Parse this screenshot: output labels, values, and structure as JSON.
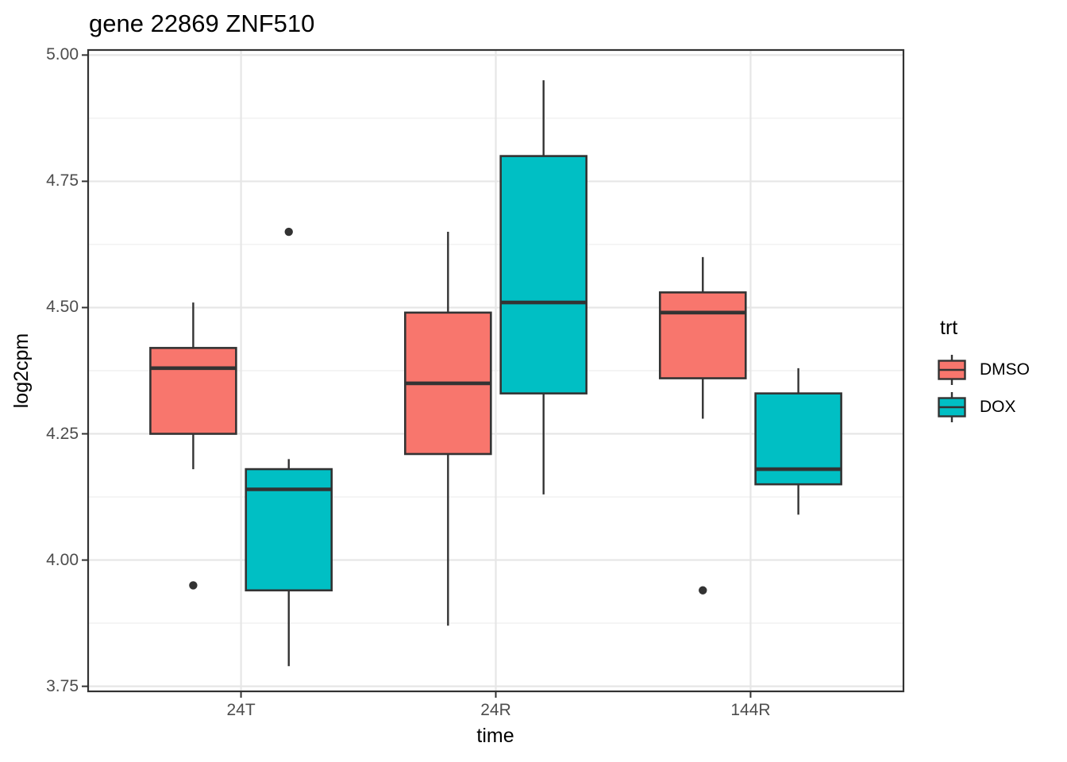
{
  "colors": {
    "background": "#FFFFFF",
    "dmso_fill": "#F8766D",
    "dox_fill": "#00BFC4",
    "box_border": "#333333",
    "panel_border": "#333333",
    "grid_major": "#E6E6E6",
    "grid_minor": "#F0F0F0",
    "tick": "#333333",
    "axis_text": "#4D4D4D",
    "title_text": "#000000"
  },
  "chart_data": {
    "type": "boxplot",
    "title": "gene 22869 ZNF510",
    "xlabel": "time",
    "ylabel": "log2cpm",
    "categories": [
      "24T",
      "24R",
      "144R"
    ],
    "y_ticks": [
      3.75,
      4.0,
      4.25,
      4.5,
      4.75,
      5.0
    ],
    "y_tick_labels": [
      "3.75",
      "4.00",
      "4.25",
      "4.50",
      "4.75",
      "5.00"
    ],
    "ylim": [
      3.74,
      5.01
    ],
    "grid": "horizontal major+minor, vertical major at categories",
    "legend": {
      "title": "trt",
      "position": "right"
    },
    "series": [
      {
        "name": "DMSO",
        "color": "#F8766D",
        "boxes": [
          {
            "category": "24T",
            "whisker_low": 4.18,
            "q1": 4.25,
            "median": 4.38,
            "q3": 4.42,
            "whisker_high": 4.51,
            "outliers": [
              3.95
            ]
          },
          {
            "category": "24R",
            "whisker_low": 3.87,
            "q1": 4.21,
            "median": 4.35,
            "q3": 4.49,
            "whisker_high": 4.65,
            "outliers": []
          },
          {
            "category": "144R",
            "whisker_low": 4.28,
            "q1": 4.36,
            "median": 4.49,
            "q3": 4.53,
            "whisker_high": 4.6,
            "outliers": [
              3.94
            ]
          }
        ]
      },
      {
        "name": "DOX",
        "color": "#00BFC4",
        "boxes": [
          {
            "category": "24T",
            "whisker_low": 3.79,
            "q1": 3.94,
            "median": 4.14,
            "q3": 4.18,
            "whisker_high": 4.2,
            "outliers": [
              4.65
            ]
          },
          {
            "category": "24R",
            "whisker_low": 4.13,
            "q1": 4.33,
            "median": 4.51,
            "q3": 4.8,
            "whisker_high": 4.95,
            "outliers": []
          },
          {
            "category": "144R",
            "whisker_low": 4.09,
            "q1": 4.15,
            "median": 4.18,
            "q3": 4.33,
            "whisker_high": 4.38,
            "outliers": []
          }
        ]
      }
    ]
  }
}
